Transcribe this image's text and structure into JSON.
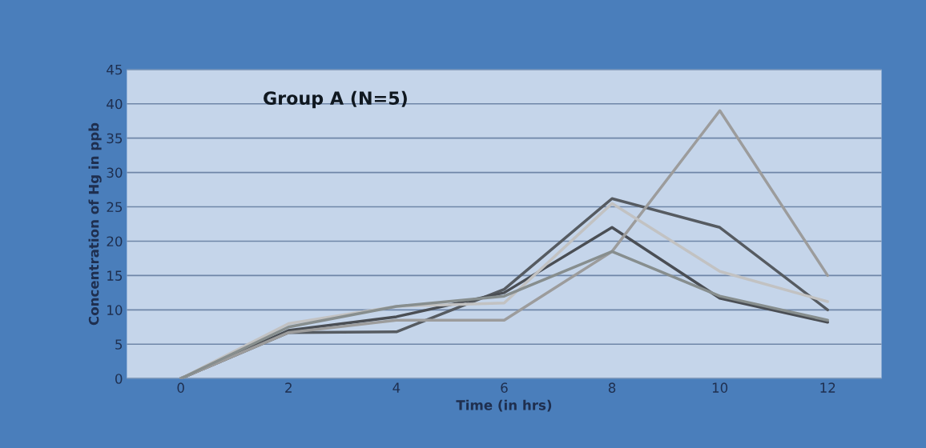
{
  "chart_data": {
    "type": "line",
    "title": "Group A (N=5)",
    "xlabel": "Time (in hrs)",
    "ylabel": "Concentration of Hg in ppb",
    "x": [
      0,
      2,
      4,
      6,
      8,
      10,
      12
    ],
    "series": [
      {
        "color": "#565b61",
        "values": [
          0,
          6.7,
          6.8,
          13,
          26.2,
          22,
          10
        ]
      },
      {
        "color": "#4a4e54",
        "values": [
          0,
          7,
          9,
          12.5,
          22,
          11.7,
          8.2
        ]
      },
      {
        "color": "#9c9c9c",
        "values": [
          0,
          6.7,
          8.5,
          8.5,
          18.5,
          39,
          15
        ]
      },
      {
        "color": "#c2c2c2",
        "values": [
          0,
          8,
          10.5,
          11,
          25.5,
          15.6,
          11.2
        ]
      },
      {
        "color": "#878e8e",
        "values": [
          0,
          7.5,
          10.5,
          12,
          18.5,
          12,
          8.5
        ]
      }
    ],
    "xlim": [
      -1,
      13
    ],
    "xticks": [
      0,
      2,
      4,
      6,
      8,
      10,
      12
    ],
    "ylim": [
      0,
      45
    ],
    "yticks": [
      0,
      5,
      10,
      15,
      20,
      25,
      30,
      35,
      40,
      45
    ],
    "grid": "y",
    "marker": "none",
    "line_style": "solid"
  }
}
